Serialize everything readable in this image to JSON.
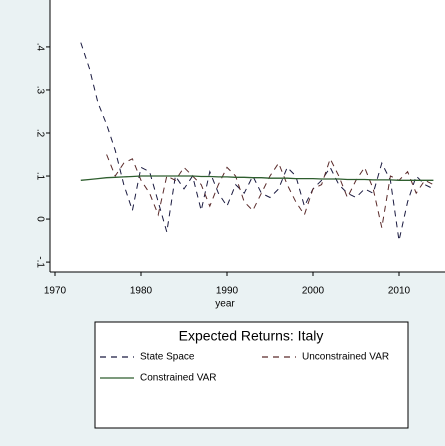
{
  "chart_data": {
    "type": "line",
    "legend_title": "Expected Returns: Italy",
    "xlabel": "year",
    "x": [
      1973,
      1974,
      1975,
      1976,
      1977,
      1978,
      1979,
      1980,
      1981,
      1982,
      1983,
      1984,
      1985,
      1986,
      1987,
      1988,
      1989,
      1990,
      1991,
      1992,
      1993,
      1994,
      1995,
      1996,
      1997,
      1998,
      1999,
      2000,
      2001,
      2002,
      2003,
      2004,
      2005,
      2006,
      2007,
      2008,
      2009,
      2010,
      2011,
      2012,
      2013,
      2014
    ],
    "series": [
      {
        "name": "State Space",
        "color": "#1a1a40",
        "dash": true,
        "values": [
          0.41,
          0.35,
          0.27,
          0.22,
          0.16,
          0.08,
          0.02,
          0.12,
          0.11,
          0.04,
          -0.03,
          0.1,
          0.07,
          0.1,
          0.02,
          0.11,
          0.06,
          0.03,
          0.08,
          0.06,
          0.1,
          0.06,
          0.05,
          0.07,
          0.12,
          0.1,
          0.03,
          0.07,
          0.09,
          0.12,
          0.08,
          0.06,
          0.05,
          0.07,
          0.06,
          0.13,
          0.09,
          -0.05,
          0.04,
          0.1,
          0.08,
          0.07
        ]
      },
      {
        "name": "Unconstrained VAR",
        "color": "#5a2a2a",
        "dash": true,
        "values": [
          null,
          null,
          null,
          0.15,
          0.1,
          0.13,
          0.14,
          0.09,
          0.06,
          0.01,
          0.1,
          0.09,
          0.12,
          0.1,
          0.08,
          0.03,
          0.08,
          0.12,
          0.1,
          0.04,
          0.02,
          0.06,
          0.1,
          0.13,
          0.08,
          0.04,
          0.01,
          0.07,
          0.08,
          0.14,
          0.1,
          0.05,
          0.09,
          0.12,
          0.07,
          -0.02,
          0.1,
          0.09,
          0.11,
          0.06,
          0.09,
          0.08
        ]
      },
      {
        "name": "Constrained VAR",
        "color": "#2e5e2e",
        "dash": false,
        "values": [
          0.09,
          0.092,
          0.094,
          0.096,
          0.097,
          0.098,
          0.099,
          0.1,
          0.1,
          0.1,
          0.1,
          0.1,
          0.1,
          0.1,
          0.099,
          0.099,
          0.098,
          0.098,
          0.097,
          0.097,
          0.096,
          0.096,
          0.095,
          0.095,
          0.095,
          0.094,
          0.094,
          0.094,
          0.093,
          0.093,
          0.093,
          0.092,
          0.092,
          0.092,
          0.091,
          0.091,
          0.091,
          0.09,
          0.09,
          0.09,
          0.09,
          0.09
        ]
      }
    ],
    "xlim": [
      1969.42,
      2015.35
    ],
    "xticks": [
      1970,
      1980,
      1990,
      2000,
      2010
    ],
    "ylim": [
      -0.123,
      0.509
    ],
    "yticks": [
      {
        "value": -0.1,
        "label": "-.1"
      },
      {
        "value": 0,
        "label": "0"
      },
      {
        "value": 0.1,
        "label": ".1"
      },
      {
        "value": 0.2,
        "label": ".2"
      },
      {
        "value": 0.3,
        "label": ".3"
      },
      {
        "value": 0.4,
        "label": ".4"
      }
    ]
  }
}
